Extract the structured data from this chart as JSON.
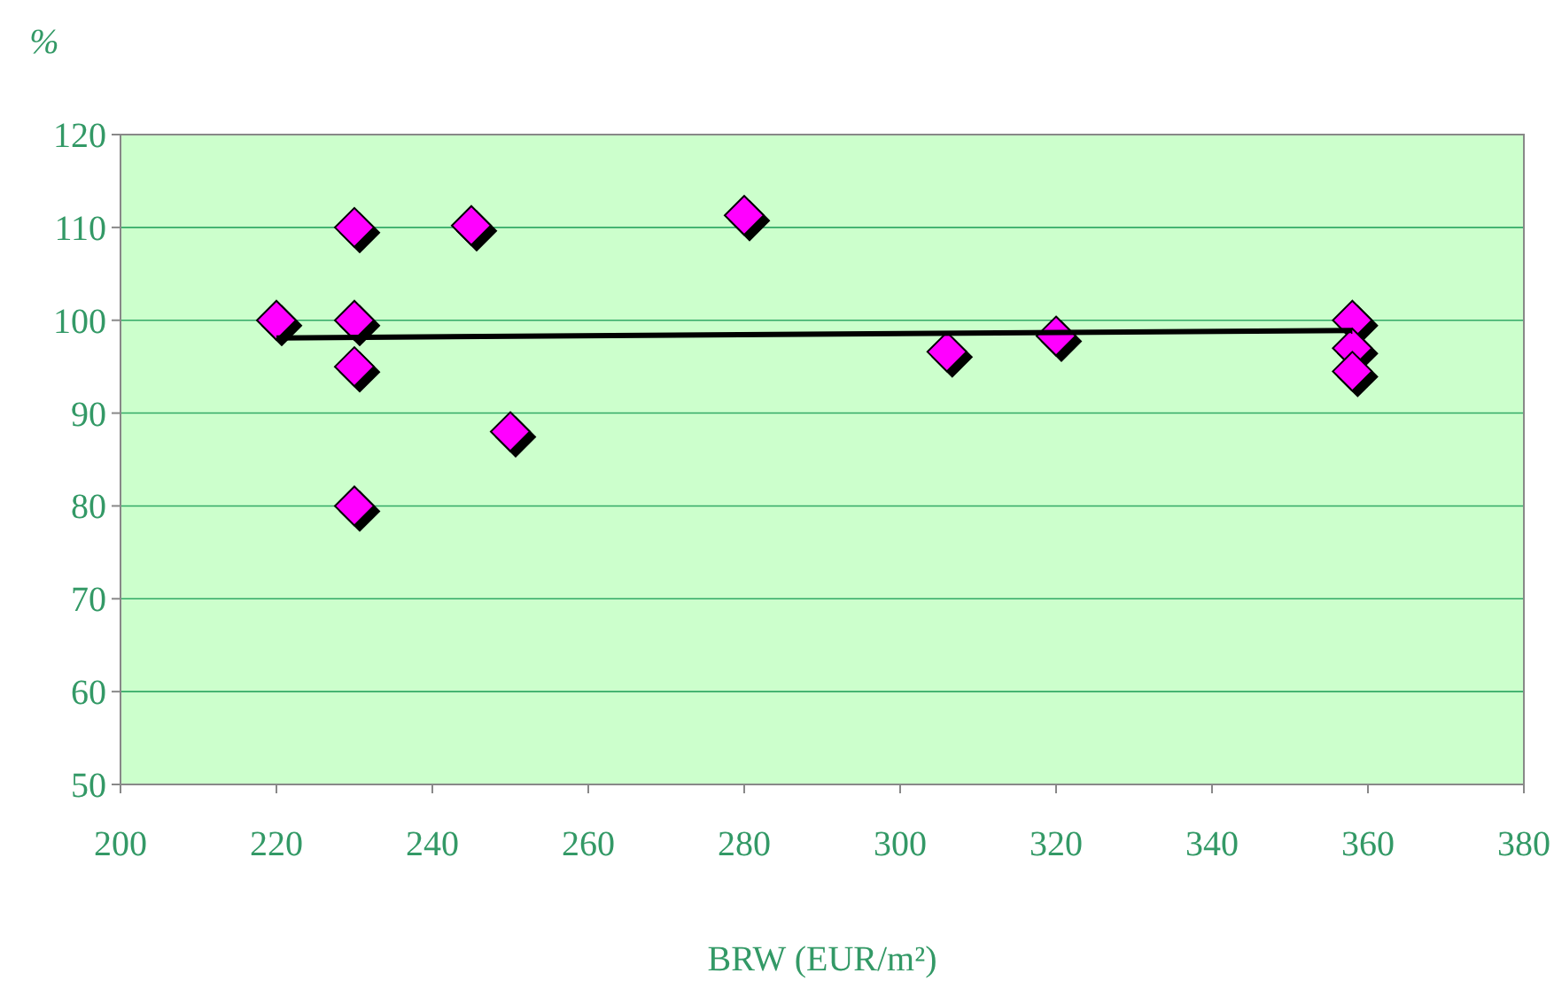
{
  "chart_data": {
    "type": "scatter",
    "xlabel": "BRW (EUR/m²)",
    "ylabel": "%",
    "xlim": [
      200,
      380
    ],
    "xticks": [
      200,
      220,
      240,
      260,
      280,
      300,
      320,
      340,
      360,
      380
    ],
    "ylim": [
      50,
      120
    ],
    "yticks": [
      50,
      60,
      70,
      80,
      90,
      100,
      110,
      120
    ],
    "grid": "y",
    "series": [
      {
        "color": "#ff00ff",
        "marker": "diamond",
        "x": [
          220,
          230,
          230,
          230,
          230,
          245,
          250,
          280,
          306,
          320,
          358,
          358,
          358
        ],
        "values": [
          100,
          110,
          100,
          95,
          80,
          110.2,
          88,
          111.3,
          96.6,
          98.3,
          100,
          97,
          94.5
        ]
      },
      {
        "type": "line",
        "color": "#000000",
        "marker": "none",
        "x": [
          220,
          358
        ],
        "values": [
          98.1,
          98.9
        ]
      }
    ]
  }
}
